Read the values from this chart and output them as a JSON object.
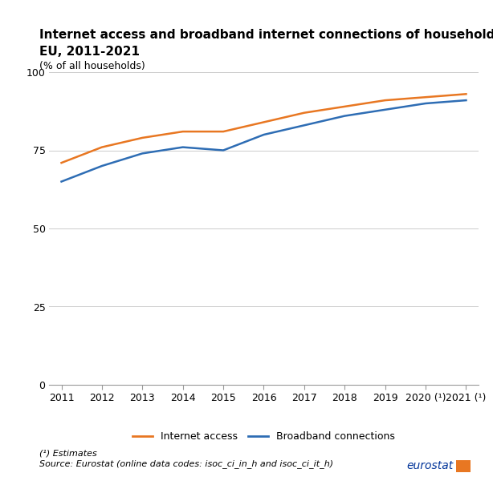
{
  "title_line1": "Internet access and broadband internet connections of households,",
  "title_line2": "EU, 2011-2021",
  "subtitle": "(% of all households)",
  "years": [
    2011,
    2012,
    2013,
    2014,
    2015,
    2016,
    2017,
    2018,
    2019,
    2020,
    2021
  ],
  "xtick_labels": [
    "2011",
    "2012",
    "2013",
    "2014",
    "2015",
    "2016",
    "2017",
    "2018",
    "2019",
    "2020 (¹)",
    "2021 (¹)"
  ],
  "internet_access": [
    71,
    76,
    79,
    81,
    81,
    84,
    87,
    89,
    91,
    92,
    93
  ],
  "broadband_connections": [
    65,
    70,
    74,
    76,
    75,
    80,
    83,
    86,
    88,
    90,
    91
  ],
  "internet_access_color": "#E87722",
  "broadband_color": "#2E6DB4",
  "ylim": [
    0,
    100
  ],
  "yticks": [
    0,
    25,
    50,
    75,
    100
  ],
  "grid_color": "#cccccc",
  "background_color": "#ffffff",
  "legend_internet": "Internet access",
  "legend_broadband": "Broadband connections",
  "footnote1": "(¹) Estimates",
  "footnote2": "Source: Eurostat (online data codes: isoc_ci_in_h and isoc_ci_it_h)",
  "eurostat_text": "eurostat",
  "line_width": 1.8
}
